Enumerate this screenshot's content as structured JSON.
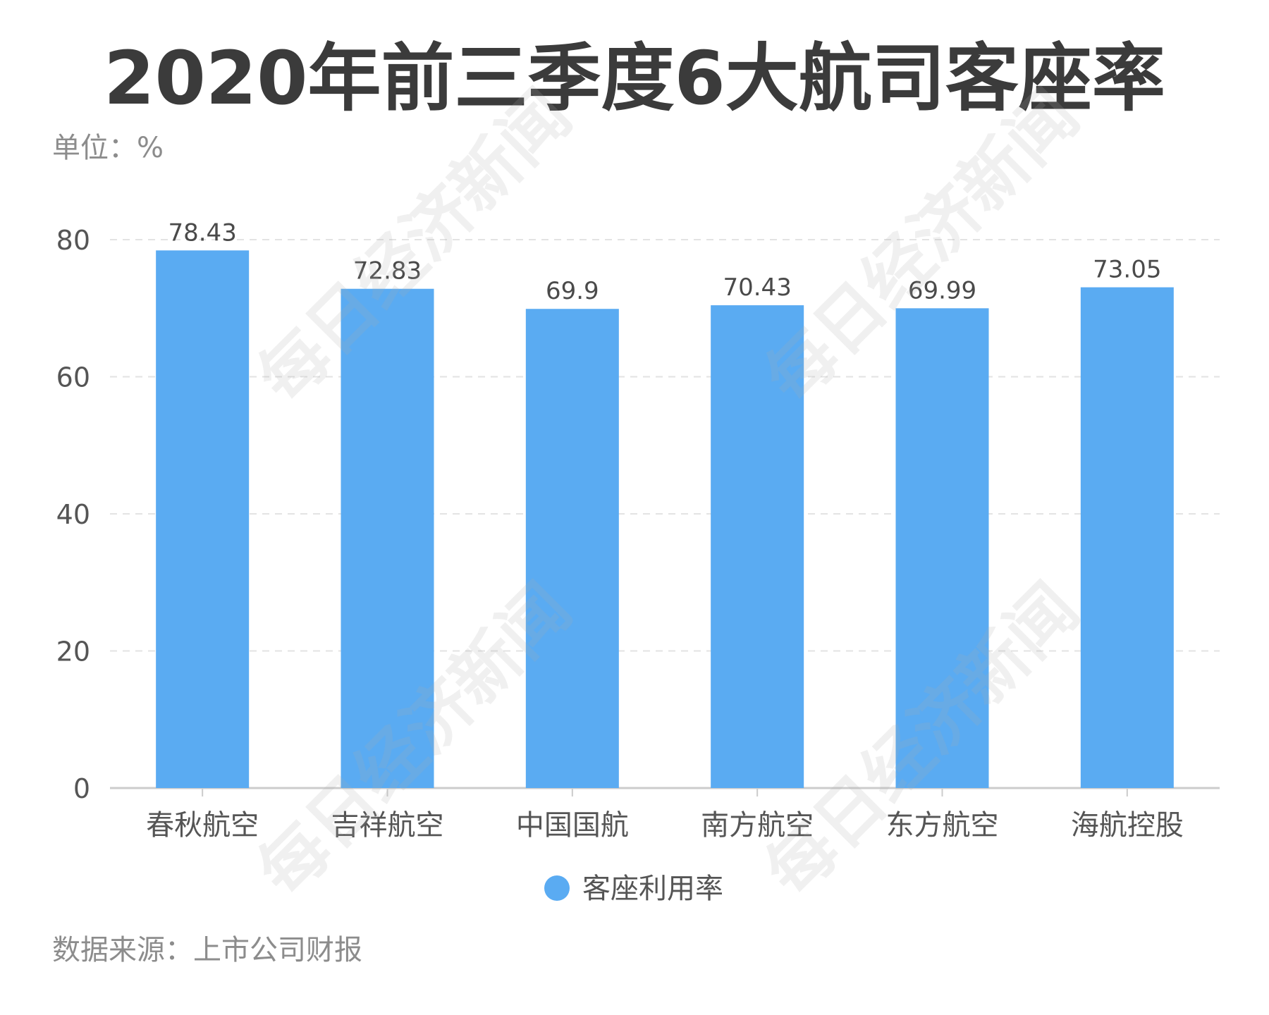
{
  "title": "2020年前三季度6大航司客座率",
  "unit_label": "单位：%",
  "source_label": "数据来源：上市公司财报",
  "watermark_text": "每日经济新闻",
  "chart_data": {
    "type": "bar",
    "categories": [
      "春秋航空",
      "吉祥航空",
      "中国国航",
      "南方航空",
      "东方航空",
      "海航控股"
    ],
    "series": [
      {
        "name": "客座利用率",
        "values": [
          78.43,
          72.83,
          69.9,
          70.43,
          69.99,
          73.05
        ],
        "value_labels": [
          "78.43",
          "72.83",
          "69.9",
          "70.43",
          "69.99",
          "73.05"
        ],
        "color": "#5aabf2"
      }
    ],
    "ylim": [
      0,
      80
    ],
    "yticks": [
      "0",
      "20",
      "40",
      "60",
      "80"
    ],
    "grid": true,
    "legend_position": "bottom",
    "colors": {
      "grid": "#e3e3e3",
      "axis": "#cccccc",
      "tick_text": "#555555",
      "value_text": "#4a4a4a",
      "legend_text": "#555555"
    }
  }
}
